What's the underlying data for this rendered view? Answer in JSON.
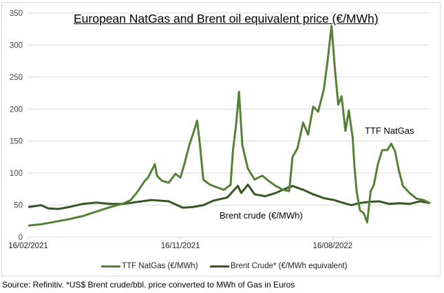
{
  "chart_data": {
    "type": "line",
    "title": "European NatGas and Brent oil equivalent price (€/MWh)",
    "xlabel": "",
    "ylabel": "",
    "x_unit": "days since 16/02/2021",
    "xlim": [
      0,
      721
    ],
    "ylim": [
      0,
      350
    ],
    "yticks": [
      0,
      50,
      100,
      150,
      200,
      250,
      300,
      350
    ],
    "xticks": [
      {
        "x": 0,
        "label": "16/02/2021"
      },
      {
        "x": 273,
        "label": "16/11/2021"
      },
      {
        "x": 546,
        "label": "16/08/2022"
      }
    ],
    "grid": true,
    "legend_position": "bottom",
    "series": [
      {
        "name": "TTF NatGas (€/MWh)",
        "color": "#538135",
        "x": [
          0,
          23,
          48,
          73,
          98,
          122,
          147,
          172,
          184,
          196,
          209,
          215,
          227,
          231,
          240,
          252,
          264,
          273,
          280,
          289,
          298,
          303,
          308,
          314,
          326,
          338,
          351,
          363,
          367,
          373,
          378,
          384,
          394,
          406,
          420,
          431,
          444,
          457,
          468,
          474,
          483,
          493,
          502,
          511,
          520,
          530,
          537,
          544,
          550,
          556,
          562,
          569,
          575,
          582,
          585,
          589,
          595,
          602,
          608,
          614,
          620,
          627,
          635,
          644,
          651,
          658,
          664,
          672,
          684,
          697,
          709,
          721
        ],
        "values": [
          18,
          20,
          24,
          28,
          33,
          40,
          47,
          53,
          58,
          71,
          88,
          93,
          114,
          96,
          88,
          85,
          99,
          93,
          114,
          144,
          168,
          182,
          144,
          90,
          82,
          78,
          74,
          82,
          134,
          177,
          227,
          144,
          107,
          90,
          96,
          88,
          80,
          74,
          72,
          125,
          139,
          179,
          160,
          204,
          196,
          230,
          276,
          330,
          263,
          207,
          220,
          166,
          198,
          155,
          112,
          71,
          42,
          37,
          23,
          71,
          82,
          114,
          136,
          136,
          146,
          134,
          107,
          80,
          69,
          60,
          58,
          53
        ]
      },
      {
        "name": "Brent Crude* (€/MWh equivalent)",
        "color": "#375623",
        "x": [
          0,
          23,
          36,
          54,
          73,
          98,
          122,
          147,
          172,
          196,
          221,
          252,
          277,
          295,
          314,
          332,
          357,
          376,
          382,
          394,
          406,
          425,
          444,
          462,
          474,
          493,
          511,
          530,
          548,
          567,
          580,
          592,
          610,
          629,
          647,
          666,
          684,
          703,
          721
        ],
        "values": [
          47,
          50,
          45,
          44,
          47,
          52,
          54,
          52,
          52,
          55,
          58,
          56,
          46,
          47,
          50,
          57,
          62,
          80,
          69,
          82,
          67,
          64,
          69,
          76,
          80,
          74,
          67,
          61,
          58,
          53,
          50,
          53,
          55,
          56,
          52,
          53,
          52,
          56,
          53
        ]
      }
    ],
    "annotations": [
      {
        "text": "TTF NatGas",
        "series": 0
      },
      {
        "text": "Brent crude (€/MWh)",
        "series": 1
      }
    ],
    "source": "Source: Refinitiv. *US$ Brent crude/bbl. price converted to MWh of Gas in Euros"
  }
}
